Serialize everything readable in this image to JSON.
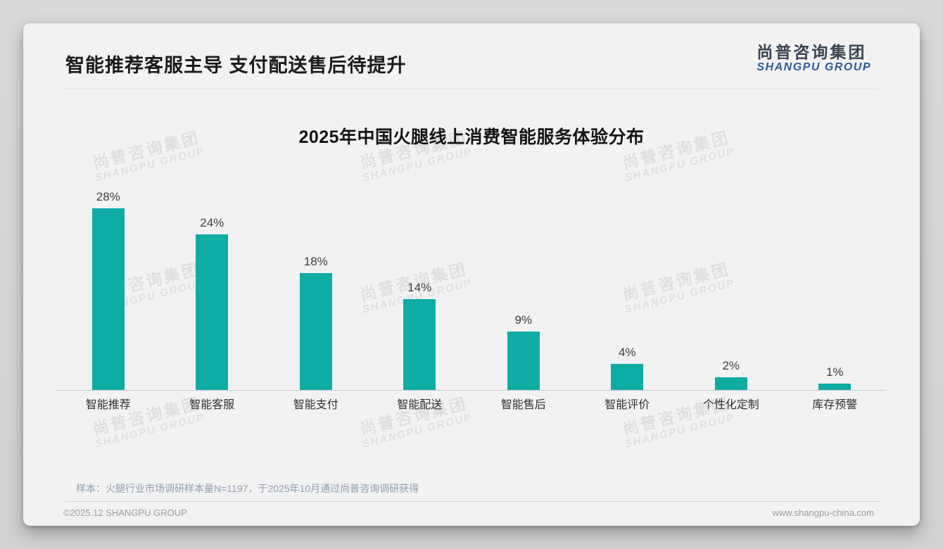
{
  "slide": {
    "title": "智能推荐客服主导 支付配送售后待提升",
    "logo": {
      "cn": "尚普咨询集团",
      "en": "SHANGPU GROUP"
    },
    "watermark": {
      "cn": "尚普咨询集团",
      "en": "SHANGPU GROUP"
    },
    "footnote": "样本：火腿行业市场调研样本量N=1197，于2025年10月通过尚普咨询调研获得",
    "footer": {
      "copyright": "©2025.12 SHANGPU GROUP",
      "website": "www.shangpu-china.com"
    }
  },
  "chart_data": {
    "type": "bar",
    "title": "2025年中国火腿线上消费智能服务体验分布",
    "categories": [
      "智能推荐",
      "智能客服",
      "智能支付",
      "智能配送",
      "智能售后",
      "智能评价",
      "个性化定制",
      "库存预警"
    ],
    "values": [
      28,
      24,
      18,
      14,
      9,
      4,
      2,
      1
    ],
    "value_labels": [
      "28%",
      "24%",
      "18%",
      "14%",
      "9%",
      "4%",
      "2%",
      "1%"
    ],
    "xlabel": "",
    "ylabel": "",
    "ylim": [
      0,
      30
    ],
    "grid": false,
    "legend": false,
    "bar_color": "#0faca4",
    "axis_color": "#c9c9c9"
  }
}
